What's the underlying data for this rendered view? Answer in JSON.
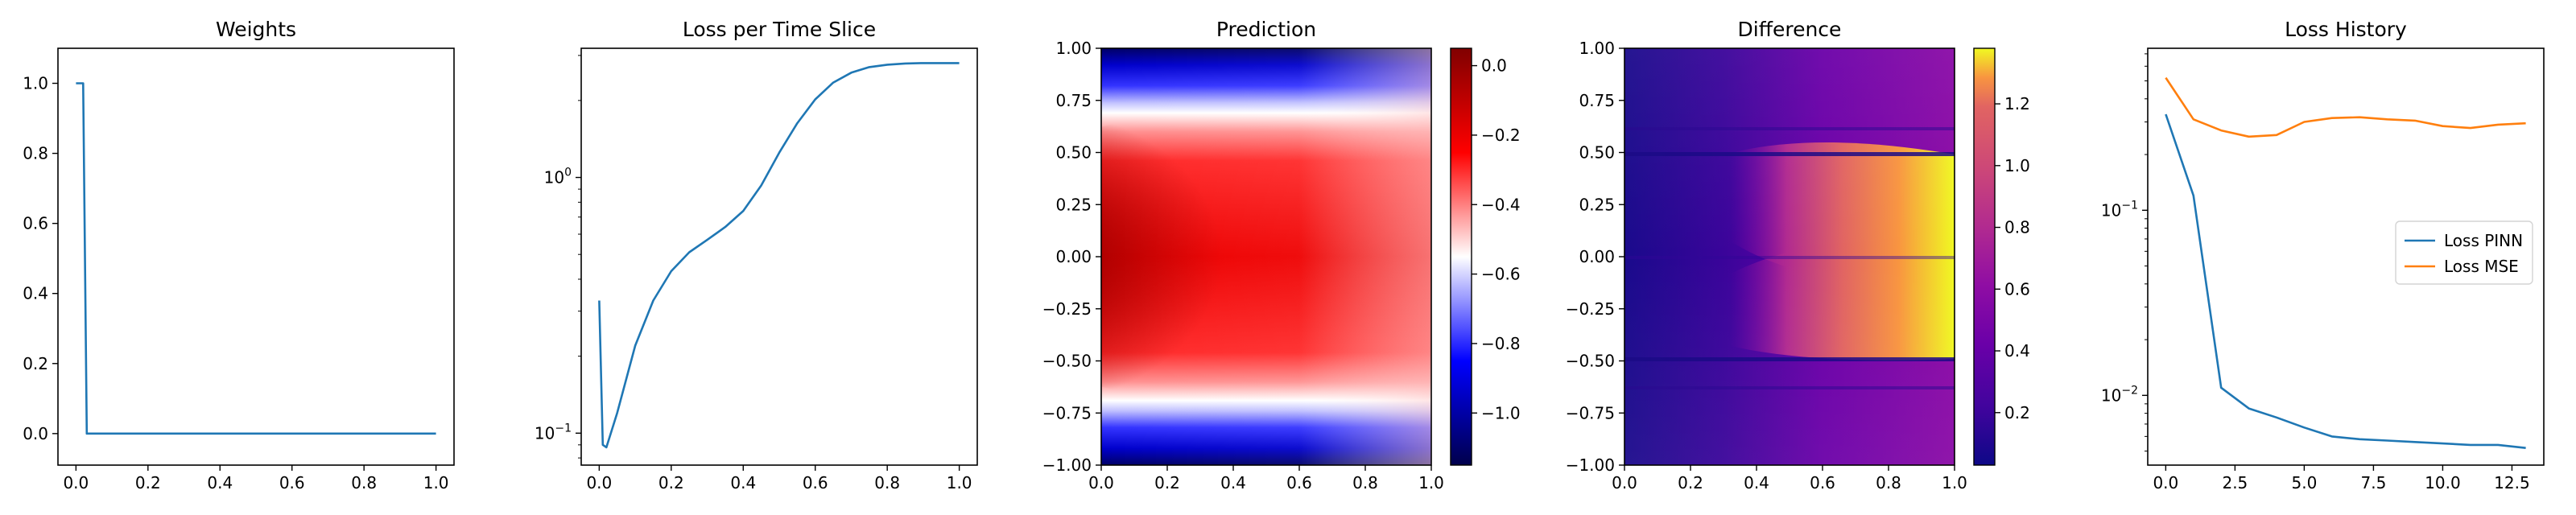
{
  "chart_data": [
    {
      "type": "line",
      "title": "Weights",
      "xlabel": "",
      "ylabel": "",
      "xlim": [
        -0.05,
        1.05
      ],
      "ylim": [
        -0.09,
        1.1
      ],
      "xticks": [
        "0.0",
        "0.2",
        "0.4",
        "0.6",
        "0.8",
        "1.0"
      ],
      "yticks": [
        "0.0",
        "0.2",
        "0.4",
        "0.6",
        "0.8",
        "1.0"
      ],
      "grid": false,
      "series": [
        {
          "color": "#1f77b4",
          "x": [
            0.0,
            0.02,
            0.03,
            1.0
          ],
          "y": [
            1.0,
            1.0,
            0.0,
            0.0
          ]
        }
      ]
    },
    {
      "type": "line",
      "title": "Loss per Time Slice",
      "xlabel": "",
      "ylabel": "",
      "yscale": "log",
      "xlim": [
        -0.05,
        1.05
      ],
      "ylim": [
        0.075,
        3.2
      ],
      "xticks": [
        "0.0",
        "0.2",
        "0.4",
        "0.6",
        "0.8",
        "1.0"
      ],
      "yticks": [
        {
          "base": "10",
          "exp": "−1"
        },
        {
          "base": "10",
          "exp": "0"
        }
      ],
      "grid": false,
      "series": [
        {
          "color": "#1f77b4",
          "x": [
            0.0,
            0.01,
            0.02,
            0.05,
            0.1,
            0.15,
            0.2,
            0.25,
            0.3,
            0.35,
            0.4,
            0.45,
            0.5,
            0.55,
            0.6,
            0.65,
            0.7,
            0.75,
            0.8,
            0.85,
            0.9,
            0.95,
            1.0
          ],
          "y": [
            0.33,
            0.09,
            0.088,
            0.12,
            0.22,
            0.33,
            0.43,
            0.51,
            0.57,
            0.64,
            0.74,
            0.93,
            1.25,
            1.63,
            2.02,
            2.35,
            2.57,
            2.7,
            2.76,
            2.79,
            2.8,
            2.8,
            2.8
          ]
        }
      ]
    },
    {
      "type": "heatmap",
      "title": "Prediction",
      "xlabel": "",
      "ylabel": "",
      "xlim": [
        0.0,
        1.0
      ],
      "ylim": [
        -1.0,
        1.0
      ],
      "xticks": [
        "0.0",
        "0.2",
        "0.4",
        "0.6",
        "0.8",
        "1.0"
      ],
      "yticks": [
        "−1.00",
        "−0.75",
        "−0.50",
        "−0.25",
        "0.00",
        "0.25",
        "0.50",
        "0.75",
        "1.00"
      ],
      "colormap": "seismic",
      "colorbar": {
        "min": -1.15,
        "max": 0.05,
        "ticks": [
          "−1.0",
          "−0.8",
          "−0.6",
          "−0.4",
          "−0.2",
          "0.0"
        ],
        "tick_values": [
          -1.0,
          -0.8,
          -0.6,
          -0.4,
          -0.2,
          0.0
        ]
      }
    },
    {
      "type": "heatmap",
      "title": "Difference",
      "xlabel": "",
      "ylabel": "",
      "xlim": [
        0.0,
        1.0
      ],
      "ylim": [
        -1.0,
        1.0
      ],
      "xticks": [
        "0.0",
        "0.2",
        "0.4",
        "0.6",
        "0.8",
        "1.0"
      ],
      "yticks": [
        "−1.00",
        "−0.75",
        "−0.50",
        "−0.25",
        "0.00",
        "0.25",
        "0.50",
        "0.75",
        "1.00"
      ],
      "colormap": "plasma",
      "colorbar": {
        "min": 0.03,
        "max": 1.38,
        "ticks": [
          "0.2",
          "0.4",
          "0.6",
          "0.8",
          "1.0",
          "1.2"
        ],
        "tick_values": [
          0.2,
          0.4,
          0.6,
          0.8,
          1.0,
          1.2
        ]
      }
    },
    {
      "type": "line",
      "title": "Loss History",
      "xlabel": "",
      "ylabel": "",
      "yscale": "log",
      "xlim": [
        -0.65,
        13.65
      ],
      "ylim": [
        0.0042,
        0.75
      ],
      "xticks": [
        "0.0",
        "2.5",
        "5.0",
        "7.5",
        "10.0",
        "12.5"
      ],
      "yticks": [
        {
          "base": "10",
          "exp": "−2"
        },
        {
          "base": "10",
          "exp": "−1"
        }
      ],
      "grid": false,
      "legend": "center-right",
      "series": [
        {
          "name": "Loss PINN",
          "color": "#1f77b4",
          "x": [
            0,
            1,
            2,
            3,
            4,
            5,
            6,
            7,
            8,
            9,
            10,
            11,
            12,
            13
          ],
          "y": [
            0.33,
            0.12,
            0.011,
            0.0085,
            0.0076,
            0.0067,
            0.006,
            0.0058,
            0.0057,
            0.0056,
            0.0055,
            0.0054,
            0.0054,
            0.0052
          ]
        },
        {
          "name": "Loss MSE",
          "color": "#ff7f0e",
          "x": [
            0,
            1,
            2,
            3,
            4,
            5,
            6,
            7,
            8,
            9,
            10,
            11,
            12,
            13
          ],
          "y": [
            0.52,
            0.31,
            0.27,
            0.25,
            0.255,
            0.3,
            0.315,
            0.318,
            0.31,
            0.305,
            0.285,
            0.278,
            0.29,
            0.295
          ]
        }
      ]
    }
  ]
}
